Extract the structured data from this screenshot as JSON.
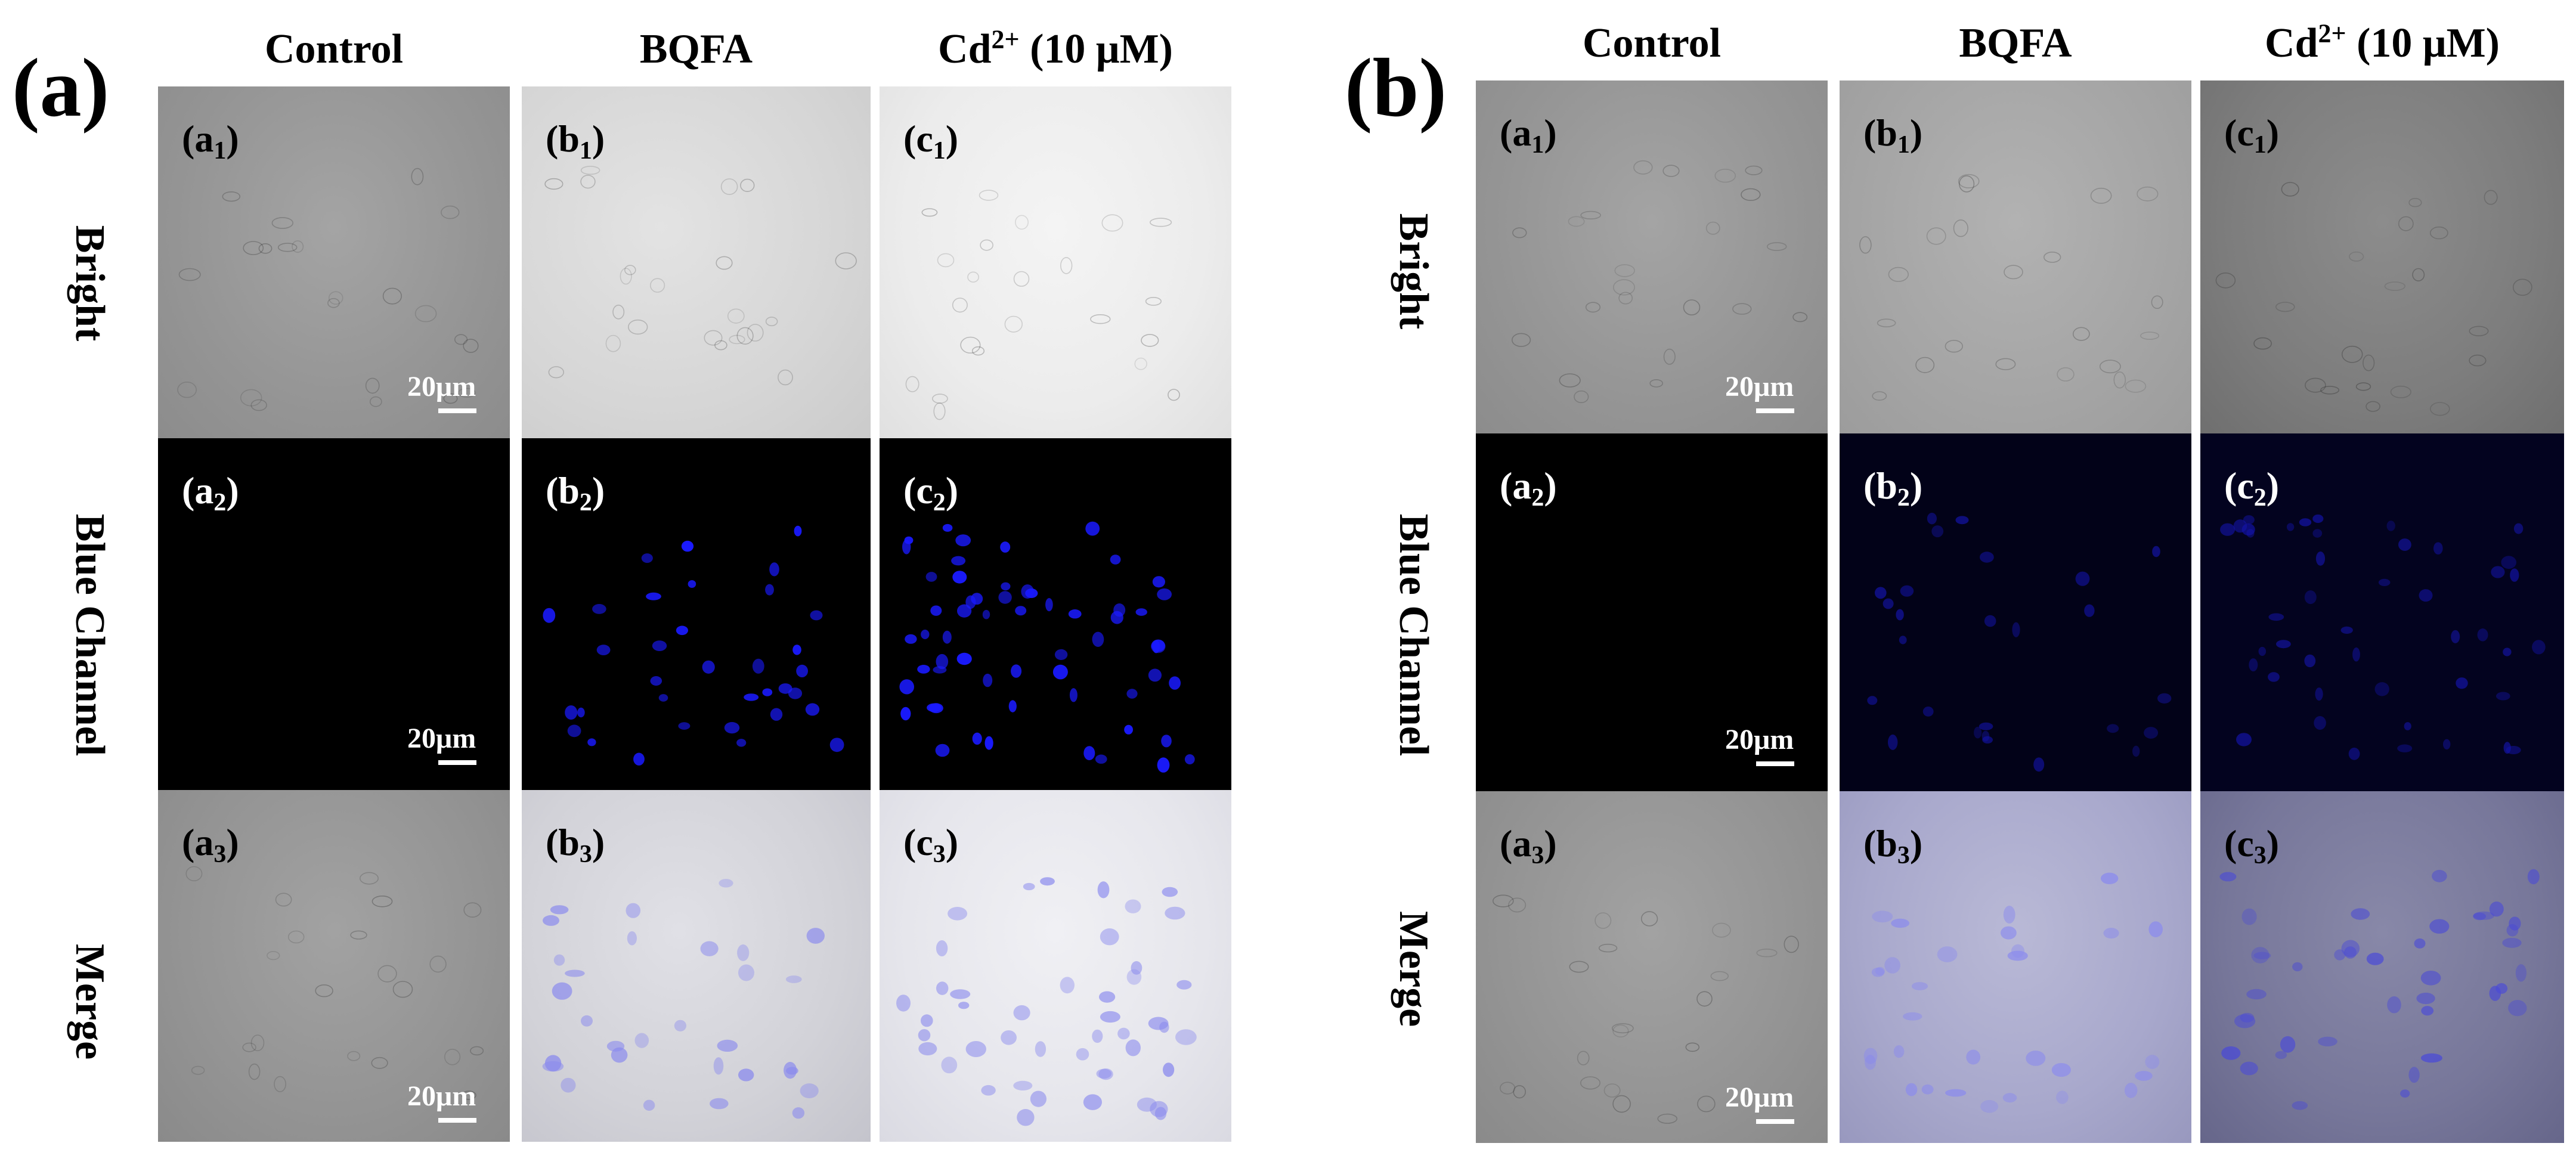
{
  "figure": {
    "panels": [
      {
        "letter": "(a)",
        "columns": [
          {
            "label": "Control",
            "sup": "",
            "suffix": ""
          },
          {
            "label": "BQFA",
            "sup": "",
            "suffix": ""
          },
          {
            "label": "Cd",
            "sup": "2+",
            "suffix": " (10 μM)"
          }
        ],
        "rows": [
          "Bright",
          "Blue Channel",
          "Merge"
        ],
        "cells": [
          [
            {
              "l": "a",
              "n": "1"
            },
            {
              "l": "b",
              "n": "1"
            },
            {
              "l": "c",
              "n": "1"
            }
          ],
          [
            {
              "l": "a",
              "n": "2"
            },
            {
              "l": "b",
              "n": "2"
            },
            {
              "l": "c",
              "n": "2"
            }
          ],
          [
            {
              "l": "a",
              "n": "3"
            },
            {
              "l": "b",
              "n": "3"
            },
            {
              "l": "c",
              "n": "3"
            }
          ]
        ],
        "scalebar": "20μm"
      },
      {
        "letter": "(b)",
        "columns": [
          {
            "label": "Control",
            "sup": "",
            "suffix": ""
          },
          {
            "label": "BQFA",
            "sup": "",
            "suffix": ""
          },
          {
            "label": "Cd",
            "sup": "2+",
            "suffix": " (10 μM)"
          }
        ],
        "rows": [
          "Bright",
          "Blue Channel",
          "Merge"
        ],
        "cells": [
          [
            {
              "l": "a",
              "n": "1"
            },
            {
              "l": "b",
              "n": "1"
            },
            {
              "l": "c",
              "n": "1"
            }
          ],
          [
            {
              "l": "a",
              "n": "2"
            },
            {
              "l": "b",
              "n": "2"
            },
            {
              "l": "c",
              "n": "2"
            }
          ],
          [
            {
              "l": "a",
              "n": "3"
            },
            {
              "l": "b",
              "n": "3"
            },
            {
              "l": "c",
              "n": "3"
            }
          ]
        ],
        "scalebar": "20μm"
      }
    ],
    "colors": {
      "background": "#ffffff",
      "fluorescence": "#1a1aff",
      "channel_black": "#000000"
    }
  }
}
